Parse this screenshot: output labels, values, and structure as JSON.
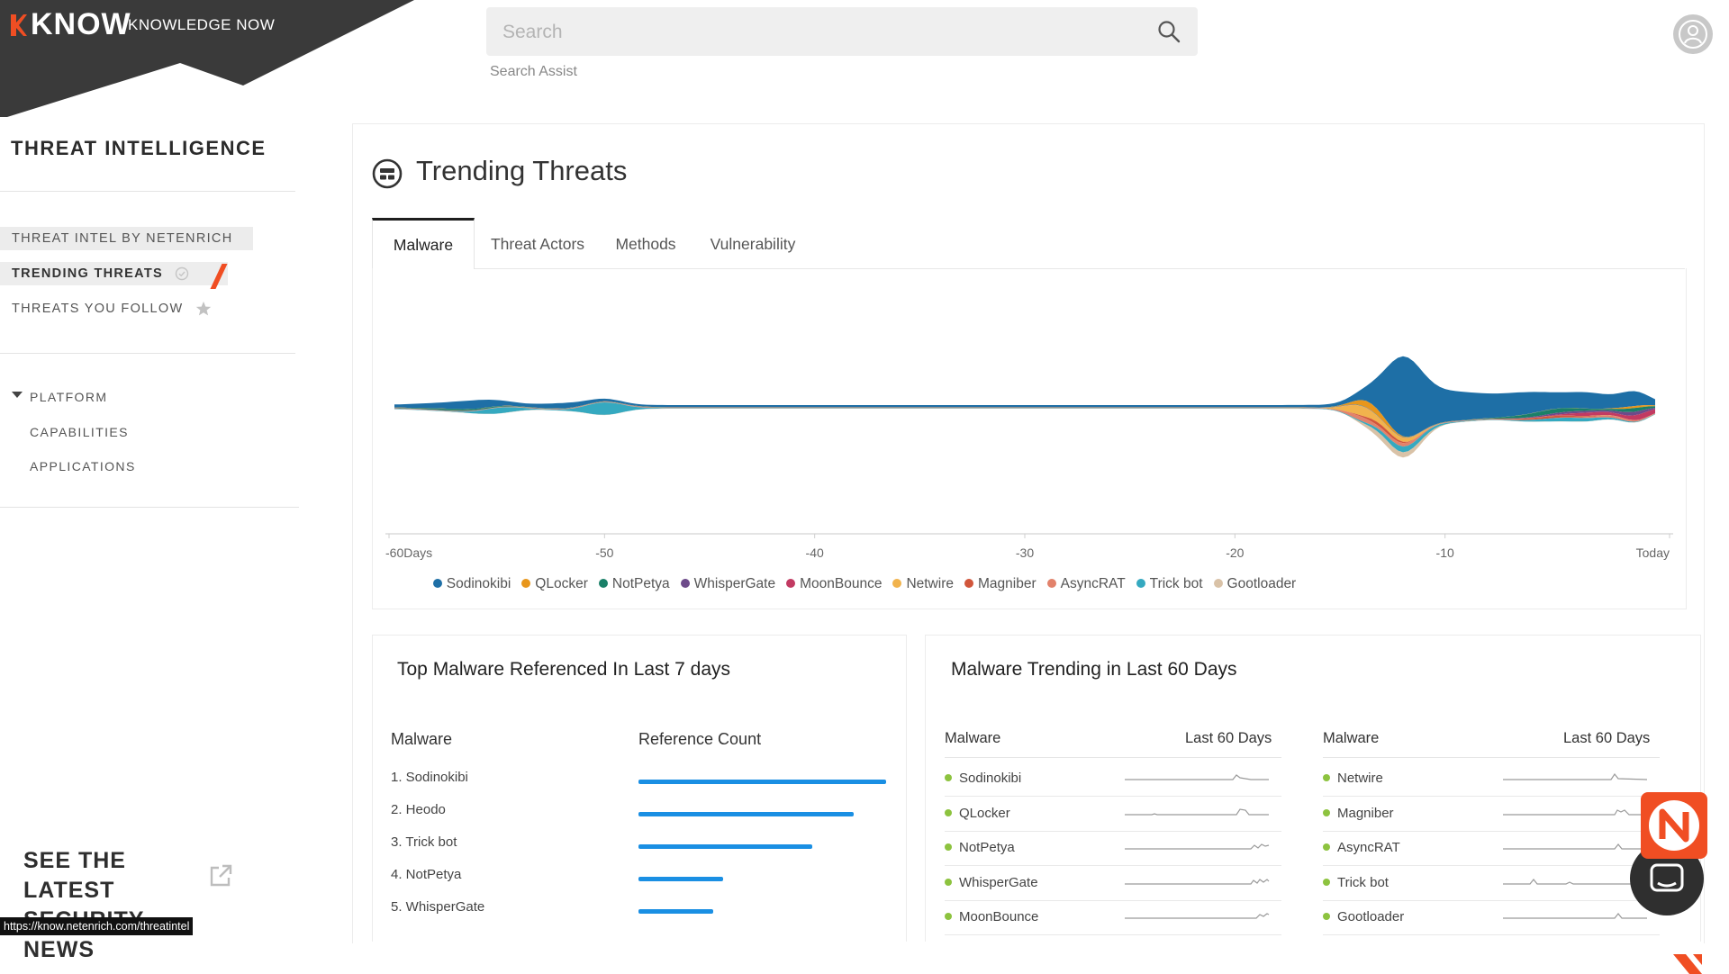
{
  "brand": {
    "name": "KNOW",
    "tagline": "KNOWLEDGE NOW",
    "accent_color": "#f04e23"
  },
  "search": {
    "placeholder": "Search",
    "assist_label": "Search Assist",
    "icon": "search-icon"
  },
  "user": {
    "icon": "user-avatar-icon"
  },
  "sidebar": {
    "title": "THREAT INTELLIGENCE",
    "items": [
      {
        "label": "THREAT INTEL BY NETENRICH"
      },
      {
        "label": "TRENDING THREATS",
        "icon": "check-circle-icon",
        "active": true
      },
      {
        "label": "THREATS YOU FOLLOW",
        "icon": "star-icon"
      }
    ],
    "platform": {
      "label": "PLATFORM",
      "items": [
        "CAPABILITIES",
        "APPLICATIONS"
      ]
    },
    "news": {
      "line1": "SEE THE LATEST",
      "line2": "SECURITY NEWS",
      "icon": "external-link-icon"
    },
    "status_url": "https://know.netenrich.com/threatintel"
  },
  "main": {
    "title": "Trending Threats",
    "icon": "trending-icon",
    "tabs": [
      "Malware",
      "Threat Actors",
      "Methods",
      "Vulnerability"
    ],
    "active_tab": "Malware"
  },
  "chart_data": {
    "type": "area",
    "subtype": "streamgraph",
    "x_ticks": [
      "-60Days",
      "-50",
      "-40",
      "-30",
      "-20",
      "-10",
      "Today"
    ],
    "xlim": [
      -60,
      0
    ],
    "legend_position": "bottom",
    "series": [
      {
        "name": "Sodinokibi",
        "color": "#1e6fa6"
      },
      {
        "name": "QLocker",
        "color": "#e8961b"
      },
      {
        "name": "NotPetya",
        "color": "#1a8068"
      },
      {
        "name": "WhisperGate",
        "color": "#6d4a8a"
      },
      {
        "name": "MoonBounce",
        "color": "#c23a62"
      },
      {
        "name": "Netwire",
        "color": "#f1b34d"
      },
      {
        "name": "Magniber",
        "color": "#d1563b"
      },
      {
        "name": "AsyncRAT",
        "color": "#e2826b"
      },
      {
        "name": "Trick bot",
        "color": "#35a9c0"
      },
      {
        "name": "Gootloader",
        "color": "#d9c2a7"
      }
    ]
  },
  "top_malware": {
    "title": "Top Malware Referenced In Last 7 days",
    "col_malware": "Malware",
    "col_count": "Reference Count",
    "rows": [
      {
        "label": "1. Sodinokibi",
        "share": 1.0
      },
      {
        "label": "2. Heodo",
        "share": 0.87
      },
      {
        "label": "3. Trick bot",
        "share": 0.7
      },
      {
        "label": "4. NotPetya",
        "share": 0.34
      },
      {
        "label": "5. WhisperGate",
        "share": 0.3
      }
    ]
  },
  "trending": {
    "title": "Malware Trending in Last 60 Days",
    "col_malware": "Malware",
    "col_period": "Last 60 Days",
    "left": [
      "Sodinokibi",
      "QLocker",
      "NotPetya",
      "WhisperGate",
      "MoonBounce"
    ],
    "right": [
      "Netwire",
      "Magniber",
      "AsyncRAT",
      "Trick bot",
      "Gootloader"
    ]
  },
  "widgets": {
    "chat_icon": "chat-icon",
    "badge_icon": "netenrich-n-icon"
  }
}
